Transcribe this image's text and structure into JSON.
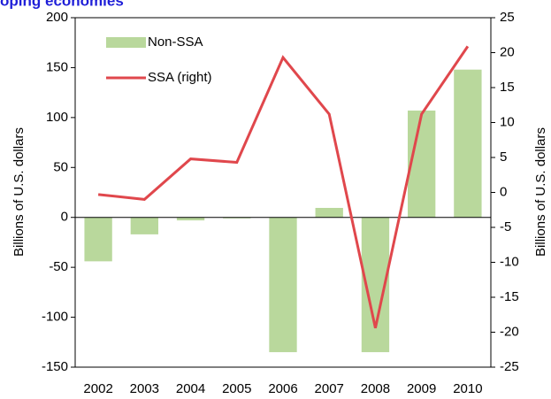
{
  "chart_data": {
    "type": "bar_line",
    "title": "oping economies",
    "y_label": "Billions of U.S. dollars",
    "y2_label": "Billions of U.S. dollars",
    "categories": [
      "2002",
      "2003",
      "2004",
      "2005",
      "2006",
      "2007",
      "2008",
      "2009",
      "2010"
    ],
    "series": [
      {
        "name": "Non-SSA",
        "type": "bar",
        "color": "#b9d89c",
        "values": [
          -44,
          -17,
          -3,
          -1,
          -135,
          9.5,
          -135,
          107,
          148
        ]
      },
      {
        "name": "SSA (right)",
        "type": "line",
        "axis": "y2",
        "color": "#e0474c",
        "values": [
          -0.3,
          -1,
          4.8,
          4.3,
          19.3,
          11.2,
          -19.4,
          11.2,
          20.9
        ]
      }
    ],
    "ylim": [
      -150,
      200
    ],
    "yticks": [
      -150,
      -100,
      -50,
      0,
      50,
      100,
      150,
      200
    ],
    "y2lim": [
      -25,
      25
    ],
    "y2ticks": [
      -25,
      -20,
      -15,
      -10,
      -5,
      0,
      5,
      10,
      15,
      20,
      25
    ],
    "legend": "upper-left"
  }
}
